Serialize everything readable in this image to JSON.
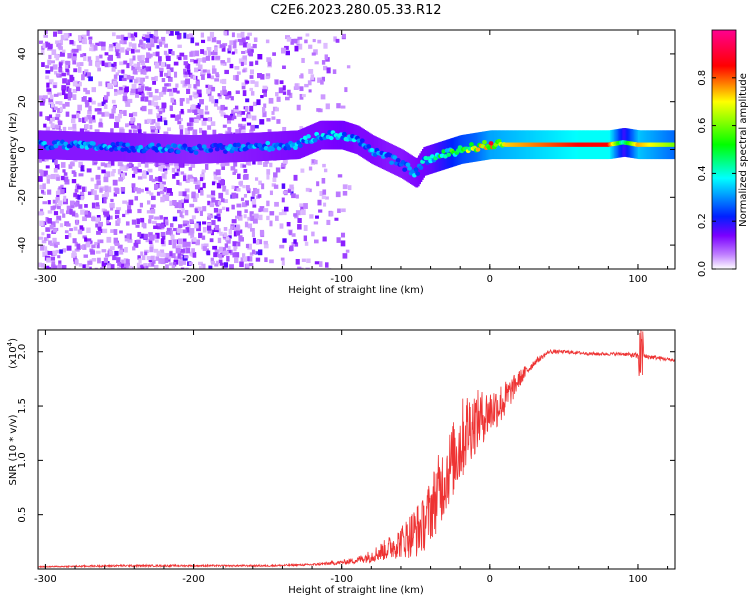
{
  "title": "C2E6.2023.280.05.33.R12",
  "chart_data": [
    {
      "type": "heatmap",
      "xlabel": "Height of straight line (km)",
      "ylabel": "Frequency (Hz)",
      "xlim": [
        -305,
        125
      ],
      "ylim": [
        -50,
        50
      ],
      "x_ticks": [
        -300,
        -200,
        -100,
        0,
        100
      ],
      "x_tick_labels": [
        "-300",
        "-200",
        "-100",
        "0",
        "100"
      ],
      "y_ticks": [
        -40,
        -20,
        0,
        20,
        40
      ],
      "y_tick_labels": [
        "-40",
        "-20",
        "0",
        "20",
        "40"
      ],
      "colorbar": {
        "label": "Normalized spectral amplitude",
        "range": [
          0,
          1
        ],
        "ticks": [
          0.0,
          0.2,
          0.4,
          0.6,
          0.8
        ],
        "tick_labels": [
          "0.0",
          "0.2",
          "0.4",
          "0.6",
          "0.8"
        ],
        "colormap": [
          "#ffffff",
          "#7a00ff",
          "#0020ff",
          "#00ffff",
          "#00ff00",
          "#ffff00",
          "#ff0000",
          "#ff0090"
        ]
      },
      "ridge": {
        "x": [
          -305,
          -250,
          -200,
          -160,
          -130,
          -115,
          -100,
          -90,
          -80,
          -70,
          -60,
          -50,
          -45,
          -40,
          -30,
          -20,
          -10,
          0,
          20,
          60,
          80,
          90,
          100,
          125
        ],
        "y": [
          2,
          1,
          0,
          1,
          2,
          6,
          6,
          4,
          0,
          -3,
          -6,
          -10,
          -5,
          -4,
          -2,
          0,
          1,
          2,
          2,
          2,
          2,
          3,
          2,
          2
        ],
        "amplitude": [
          0.28,
          0.28,
          0.26,
          0.28,
          0.3,
          0.3,
          0.32,
          0.3,
          0.3,
          0.28,
          0.28,
          0.3,
          0.32,
          0.35,
          0.45,
          0.55,
          0.6,
          0.7,
          0.75,
          0.85,
          0.85,
          0.4,
          0.75,
          0.6
        ]
      },
      "grid": false
    },
    {
      "type": "line",
      "xlabel": "Height of straight line (km)",
      "ylabel": "SNR (10 * v/v)",
      "y_scale_label": "(x10",
      "y_scale_exponent": "4",
      "xlim": [
        -305,
        125
      ],
      "ylim": [
        0,
        2.2
      ],
      "x_ticks": [
        -300,
        -200,
        -100,
        0,
        100
      ],
      "x_tick_labels": [
        "-300",
        "-200",
        "-100",
        "0",
        "100"
      ],
      "y_ticks": [
        0.5,
        1.0,
        1.5,
        2.0
      ],
      "y_tick_labels": [
        "0.5",
        "1.0",
        "1.5",
        "2.0"
      ],
      "series": [
        {
          "color": "#ee3333",
          "x": [
            -305,
            -250,
            -200,
            -150,
            -120,
            -100,
            -90,
            -80,
            -70,
            -60,
            -50,
            -45,
            -40,
            -35,
            -30,
            -25,
            -20,
            -15,
            -10,
            -5,
            0,
            5,
            10,
            15,
            20,
            30,
            40,
            50,
            60,
            70,
            80,
            90,
            100,
            110,
            125
          ],
          "y": [
            0.02,
            0.03,
            0.03,
            0.03,
            0.04,
            0.06,
            0.08,
            0.12,
            0.18,
            0.25,
            0.35,
            0.4,
            0.55,
            0.7,
            0.85,
            1.0,
            1.15,
            1.3,
            1.35,
            1.4,
            1.45,
            1.5,
            1.55,
            1.65,
            1.75,
            1.9,
            2.0,
            2.0,
            1.99,
            1.98,
            1.98,
            1.98,
            1.96,
            1.95,
            1.92
          ],
          "noise": [
            0.005,
            0.01,
            0.008,
            0.008,
            0.01,
            0.02,
            0.03,
            0.06,
            0.1,
            0.15,
            0.25,
            0.25,
            0.3,
            0.35,
            0.35,
            0.35,
            0.4,
            0.35,
            0.3,
            0.25,
            0.22,
            0.2,
            0.18,
            0.12,
            0.08,
            0.03,
            0.02,
            0.015,
            0.015,
            0.015,
            0.015,
            0.015,
            0.03,
            0.02,
            0.015
          ]
        }
      ],
      "grid": false
    }
  ]
}
